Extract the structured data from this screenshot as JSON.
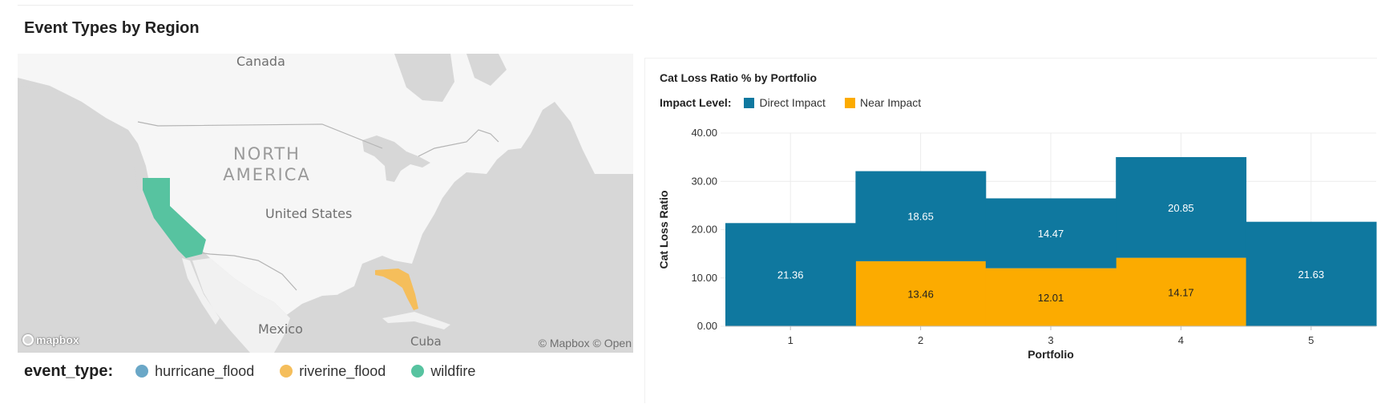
{
  "left_panel": {
    "title": "Event Types by Region",
    "map": {
      "labels": {
        "canada": "Canada",
        "north_america_line1": "NORTH",
        "north_america_line2": "AMERICA",
        "united_states": "United States",
        "mexico": "Mexico",
        "cuba": "Cuba"
      },
      "attribution": "© Mapbox © Open",
      "logo_text": "mapbox",
      "regions": [
        {
          "name": "California",
          "event_type": "wildfire"
        },
        {
          "name": "Florida",
          "event_type": "riverine_flood"
        }
      ]
    },
    "legend": {
      "title": "event_type:",
      "items": [
        {
          "label": "hurricane_flood",
          "color": "#6aa7c7"
        },
        {
          "label": "riverine_flood",
          "color": "#f5be5b"
        },
        {
          "label": "wildfire",
          "color": "#57c3a0"
        }
      ]
    }
  },
  "right_panel": {
    "title": "Cat Loss Ratio % by Portfolio",
    "legend": {
      "title": "Impact Level:",
      "items": [
        {
          "label": "Direct Impact",
          "color": "#0f789f"
        },
        {
          "label": "Near Impact",
          "color": "#fcab00"
        }
      ]
    }
  },
  "chart_data": {
    "type": "bar",
    "stacked": true,
    "title": "Cat Loss Ratio % by Portfolio",
    "xlabel": "Portfolio",
    "ylabel": "Cat Loss Ratio",
    "categories": [
      "1",
      "2",
      "3",
      "4",
      "5"
    ],
    "ylim": [
      0,
      40
    ],
    "yticks": [
      "0.00",
      "10.00",
      "20.00",
      "30.00",
      "40.00"
    ],
    "grid": true,
    "legend_position": "top-left",
    "series": [
      {
        "name": "Near Impact",
        "color": "#fcab00",
        "values": [
          0,
          13.46,
          12.01,
          14.17,
          0
        ]
      },
      {
        "name": "Direct Impact",
        "color": "#0f789f",
        "values": [
          21.36,
          18.65,
          14.47,
          20.85,
          21.63
        ]
      }
    ],
    "data_labels": [
      [
        "",
        "13.46",
        "12.01",
        "14.17",
        ""
      ],
      [
        "21.36",
        "18.65",
        "14.47",
        "20.85",
        "21.63"
      ]
    ]
  }
}
